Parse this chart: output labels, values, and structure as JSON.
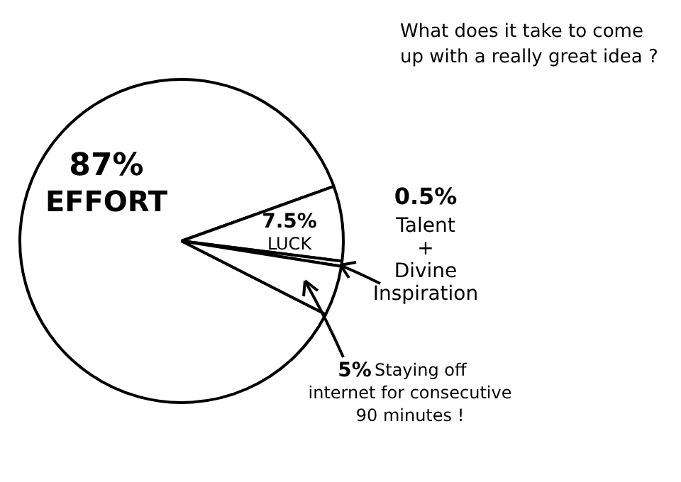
{
  "chart_data": {
    "type": "pie",
    "title": "What does it take to come up with a really great idea ?",
    "categories": [
      "EFFORT",
      "LUCK",
      "Talent + Divine Inspiration",
      "Staying off internet for consecutive 90 minutes !"
    ],
    "values": [
      87,
      7.5,
      0.5,
      5
    ],
    "value_labels": [
      "87%",
      "7.5%",
      "0.5%",
      "5%"
    ],
    "colors": [
      "#ffffff",
      "#ffffff",
      "#ffffff",
      "#ffffff"
    ],
    "legend": false
  }
}
